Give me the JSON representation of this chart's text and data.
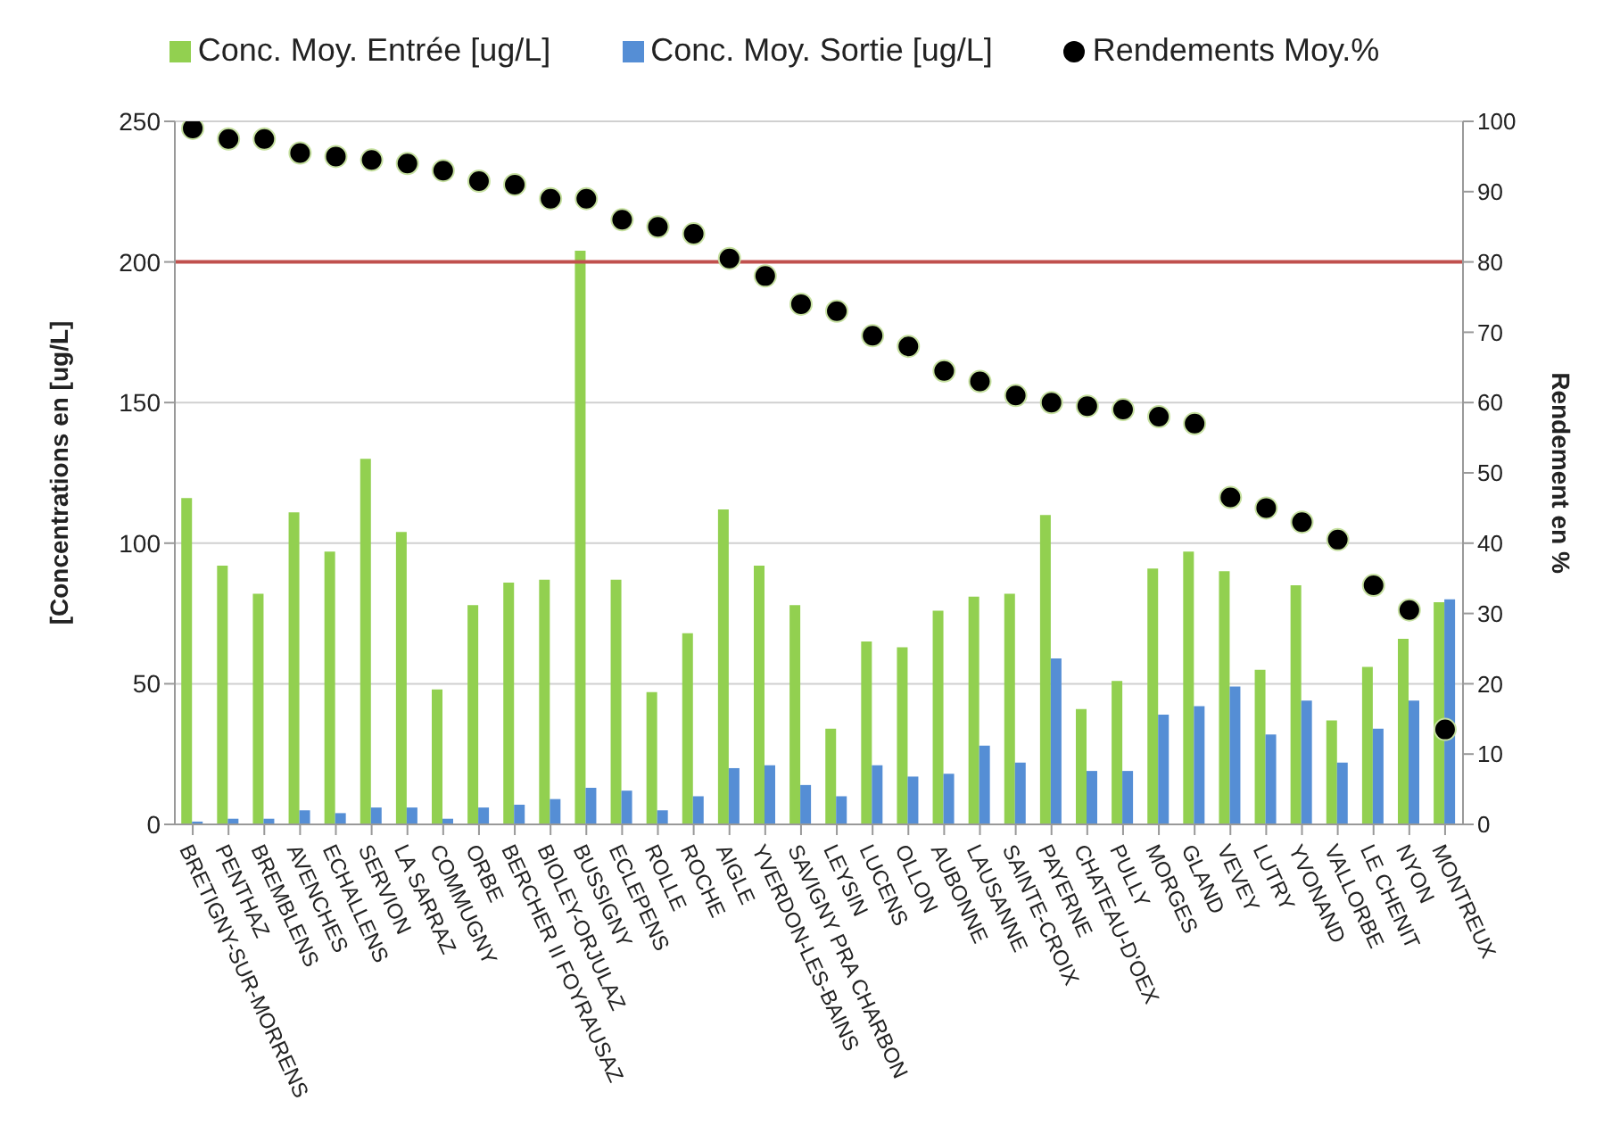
{
  "chart_data": {
    "type": "bar",
    "ylabel": "[Concentrations en [ug/L]",
    "y2label": "Rendement en %",
    "categories": [
      "BRETIGNY-SUR-MORRENS",
      "PENTHAZ",
      "BREMBLENS",
      "AVENCHES",
      "ECHALLENS",
      "SERVION",
      "LA SARRAZ",
      "COMMUGNY",
      "ORBE",
      "BERCHER II FOYRAUSAZ",
      "BIOLEY-ORJULAZ",
      "BUSSIGNY",
      "ECLEPENS",
      "ROLLE",
      "ROCHE",
      "AIGLE",
      "YVERDON-LES-BAINS",
      "SAVIGNY PRA CHARBON",
      "LEYSIN",
      "LUCENS",
      "OLLON",
      "AUBONNE",
      "LAUSANNE",
      "SAINTE-CROIX",
      "PAYERNE",
      "CHATEAU-D'OEX",
      "PULLY",
      "MORGES",
      "GLAND",
      "VEVEY",
      "LUTRY",
      "YVONAND",
      "VALLORBE",
      "LE CHENIT",
      "NYON",
      "MONTREUX"
    ],
    "series": [
      {
        "name": "Conc. Moy. Entrée [ug/L]",
        "color": "#92d050",
        "values": [
          116,
          92,
          82,
          111,
          97,
          130,
          104,
          48,
          78,
          86,
          87,
          204,
          87,
          47,
          68,
          112,
          92,
          78,
          34,
          65,
          63,
          76,
          81,
          82,
          110,
          41,
          51,
          91,
          97,
          90,
          55,
          85,
          37,
          56,
          66,
          79
        ]
      },
      {
        "name": "Conc. Moy. Sortie [ug/L]",
        "color": "#558ed5",
        "values": [
          1,
          2,
          2,
          5,
          4,
          6,
          6,
          2,
          6,
          7,
          9,
          13,
          12,
          5,
          10,
          20,
          21,
          14,
          10,
          21,
          17,
          18,
          28,
          22,
          59,
          19,
          19,
          39,
          42,
          49,
          32,
          44,
          22,
          34,
          44,
          80
        ]
      },
      {
        "name": "Rendements Moy.%",
        "type": "scatter",
        "color": "#000000",
        "axis": "y2",
        "values": [
          99,
          97.5,
          97.5,
          95.5,
          95,
          94.5,
          94,
          93,
          91.5,
          91,
          89,
          89,
          86,
          85,
          84,
          80.5,
          78,
          74,
          73,
          69.5,
          68,
          64.5,
          63,
          61,
          60,
          59.5,
          59,
          58,
          57,
          46.5,
          45,
          43,
          40.5,
          34,
          30.5,
          13.5
        ]
      }
    ],
    "ylim": [
      0,
      250
    ],
    "yticks": [
      0,
      50,
      100,
      150,
      200,
      250
    ],
    "y2lim": [
      0,
      100
    ],
    "y2ticks": [
      0,
      10,
      20,
      30,
      40,
      50,
      60,
      70,
      80,
      90,
      100
    ],
    "grid": "y",
    "legend": "top",
    "marker": "circle",
    "ref_lines": [
      {
        "axis": "y",
        "value": 200,
        "color": "#c0504d"
      }
    ]
  }
}
